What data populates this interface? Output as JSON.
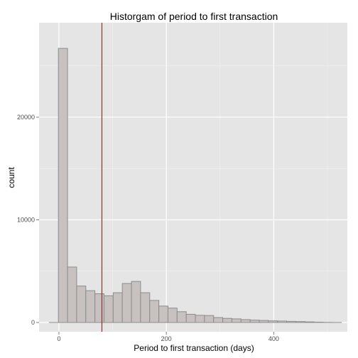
{
  "chart_data": {
    "type": "bar",
    "title": "Historgam of period to first transaction",
    "xlabel": "Period to first transaction (days)",
    "ylabel": "count",
    "xlim": [
      -37,
      537
    ],
    "ylim": [
      -900,
      29200
    ],
    "x_ticks": [
      0,
      200,
      400
    ],
    "x_tick_labels": [
      "0",
      "200",
      "400"
    ],
    "y_ticks": [
      0,
      10000,
      20000
    ],
    "y_tick_labels": [
      "0",
      "10000",
      "20000"
    ],
    "bin_width": 17,
    "bins": [
      {
        "x0": -18,
        "x1": -1,
        "count": 0
      },
      {
        "x0": -1,
        "x1": 16,
        "count": 26700
      },
      {
        "x0": 16,
        "x1": 33,
        "count": 5400
      },
      {
        "x0": 33,
        "x1": 50,
        "count": 3550
      },
      {
        "x0": 50,
        "x1": 67,
        "count": 3100
      },
      {
        "x0": 67,
        "x1": 84,
        "count": 2800
      },
      {
        "x0": 84,
        "x1": 101,
        "count": 2600
      },
      {
        "x0": 101,
        "x1": 118,
        "count": 2900
      },
      {
        "x0": 118,
        "x1": 135,
        "count": 3800
      },
      {
        "x0": 135,
        "x1": 152,
        "count": 4000
      },
      {
        "x0": 152,
        "x1": 169,
        "count": 2900
      },
      {
        "x0": 169,
        "x1": 186,
        "count": 2150
      },
      {
        "x0": 186,
        "x1": 203,
        "count": 1600
      },
      {
        "x0": 203,
        "x1": 220,
        "count": 1400
      },
      {
        "x0": 220,
        "x1": 237,
        "count": 1050
      },
      {
        "x0": 237,
        "x1": 254,
        "count": 800
      },
      {
        "x0": 254,
        "x1": 271,
        "count": 700
      },
      {
        "x0": 271,
        "x1": 288,
        "count": 680
      },
      {
        "x0": 288,
        "x1": 305,
        "count": 480
      },
      {
        "x0": 305,
        "x1": 322,
        "count": 400
      },
      {
        "x0": 322,
        "x1": 339,
        "count": 350
      },
      {
        "x0": 339,
        "x1": 356,
        "count": 280
      },
      {
        "x0": 356,
        "x1": 373,
        "count": 230
      },
      {
        "x0": 373,
        "x1": 390,
        "count": 200
      },
      {
        "x0": 390,
        "x1": 407,
        "count": 160
      },
      {
        "x0": 407,
        "x1": 424,
        "count": 140
      },
      {
        "x0": 424,
        "x1": 441,
        "count": 110
      },
      {
        "x0": 441,
        "x1": 458,
        "count": 90
      },
      {
        "x0": 458,
        "x1": 475,
        "count": 60
      },
      {
        "x0": 475,
        "x1": 492,
        "count": 30
      },
      {
        "x0": 492,
        "x1": 509,
        "count": 10
      },
      {
        "x0": 509,
        "x1": 526,
        "count": 0
      }
    ],
    "reference_line": {
      "x": 80,
      "color": "#ff0000"
    },
    "bar_fill": "#c7c1bf",
    "bar_stroke": "#8c8c8c",
    "panel_background": "#e5e5e5",
    "grid": true
  }
}
